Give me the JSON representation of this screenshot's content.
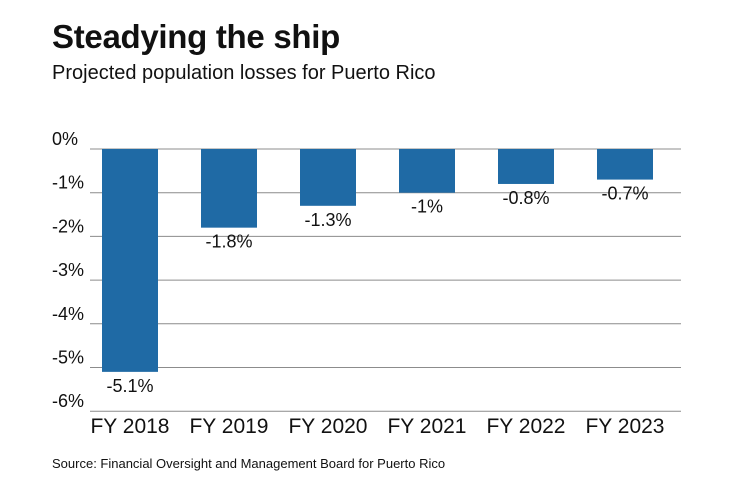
{
  "header": {
    "title": "Steadying the ship",
    "subtitle": "Projected population losses for Puerto Rico"
  },
  "footer": {
    "source": "Source: Financial Oversight and Management Board for Puerto Rico"
  },
  "chart_data": {
    "type": "bar",
    "title": "Steadying the ship",
    "subtitle": "Projected population losses for Puerto Rico",
    "categories": [
      "FY 2018",
      "FY 2019",
      "FY 2020",
      "FY 2021",
      "FY 2022",
      "FY 2023"
    ],
    "values": [
      -5.1,
      -1.8,
      -1.3,
      -1.0,
      -0.8,
      -0.7
    ],
    "data_labels": [
      "-5.1%",
      "-1.8%",
      "-1.3%",
      "-1%",
      "-0.8%",
      "-0.7%"
    ],
    "y_ticks": [
      0,
      -1,
      -2,
      -3,
      -4,
      -5,
      -6
    ],
    "y_tick_labels": [
      "0%",
      "-1%",
      "-2%",
      "-3%",
      "-4%",
      "-5%",
      "-6%"
    ],
    "ylim": [
      -6,
      0
    ],
    "xlabel": "",
    "ylabel": "",
    "grid": true,
    "bar_color": "#1f6aa5",
    "grid_color": "#8c8c8c"
  }
}
